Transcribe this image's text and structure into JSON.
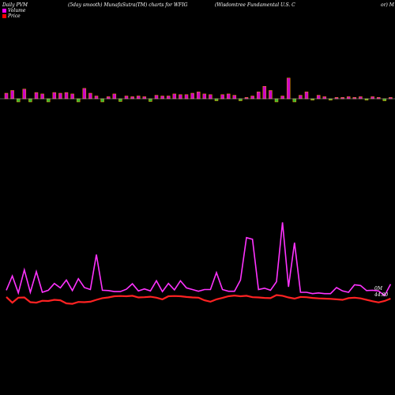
{
  "header": {
    "left": "Daily PVM",
    "middle": "(5day smooth) MunafaSutra(TM) charts for WFIG",
    "right": "(Wisdomtree  Fundamental U.S. C",
    "right_cut": "or) M"
  },
  "legend": {
    "volume_label": "Volume",
    "price_label": "Price",
    "volume_color": "#ff00ff",
    "price_color": "#ff0000"
  },
  "colors": {
    "background": "#000000",
    "volume_bar_up": "#cc00cc",
    "volume_bar_down": "#33bb33",
    "volume_bar_stroke": "#ffa500",
    "volume_line": "#ff33ff",
    "price_line": "#ff2222",
    "baseline": "#aaaaaa"
  },
  "chart_data": {
    "type": "bar",
    "title": "(5day smooth) MunafaSutra(TM) charts for WFIG",
    "grid": false,
    "series": [
      {
        "name": "Volume",
        "values": [
          8,
          12,
          7,
          14,
          6,
          9,
          7,
          5,
          9,
          8,
          9,
          7,
          5,
          15,
          8,
          4,
          8,
          3,
          7,
          4,
          4,
          3,
          4,
          3,
          4,
          5,
          4,
          4,
          7,
          6,
          6,
          8,
          10,
          7,
          6,
          3,
          6,
          7,
          5,
          3,
          2,
          4,
          10,
          18,
          12,
          6,
          4,
          30,
          24,
          5,
          10,
          2,
          5,
          3,
          2,
          2,
          2,
          3,
          2,
          3,
          2,
          3,
          2,
          3,
          2
        ],
        "direction": [
          "u",
          "u",
          "d",
          "u",
          "d",
          "u",
          "u",
          "d",
          "u",
          "u",
          "u",
          "u",
          "d",
          "u",
          "u",
          "u",
          "d",
          "u",
          "u",
          "d",
          "u",
          "u",
          "u",
          "u",
          "d",
          "u",
          "u",
          "u",
          "u",
          "u",
          "u",
          "u",
          "u",
          "u",
          "u",
          "d",
          "u",
          "u",
          "u",
          "d",
          "u",
          "u",
          "u",
          "u",
          "u",
          "d",
          "u",
          "u",
          "d",
          "u",
          "u",
          "d",
          "u",
          "u",
          "d",
          "u",
          "u",
          "u",
          "u",
          "u",
          "d",
          "u",
          "u",
          "d",
          "u"
        ]
      },
      {
        "name": "Volume (smooth)",
        "values": [
          20,
          62,
          12,
          80,
          14,
          75,
          14,
          20,
          40,
          27,
          50,
          19,
          54,
          28,
          22,
          125,
          20,
          19,
          16,
          16,
          23,
          39,
          18,
          24,
          18,
          48,
          16,
          40,
          21,
          48,
          27,
          22,
          17,
          22,
          22,
          72,
          22,
          17,
          17,
          50,
          175,
          170,
          22,
          26,
          20,
          45,
          220,
          30,
          160,
          14,
          14,
          10,
          12,
          10,
          10,
          28,
          18,
          14,
          36,
          34,
          19,
          20,
          18,
          4,
          38
        ],
        "label": "0M"
      },
      {
        "name": "Price",
        "values": [
          44.87,
          44.63,
          44.84,
          44.85,
          44.65,
          44.63,
          44.71,
          44.7,
          44.75,
          44.73,
          44.6,
          44.58,
          44.66,
          44.65,
          44.67,
          44.75,
          44.82,
          44.85,
          44.9,
          44.91,
          44.9,
          44.92,
          44.85,
          44.86,
          44.88,
          44.84,
          44.77,
          44.9,
          44.91,
          44.9,
          44.87,
          44.85,
          44.84,
          44.73,
          44.67,
          44.77,
          44.83,
          44.9,
          44.93,
          44.9,
          44.92,
          44.86,
          44.85,
          44.83,
          44.82,
          44.95,
          44.92,
          44.85,
          44.8,
          44.87,
          44.86,
          44.83,
          44.81,
          44.8,
          44.79,
          44.77,
          44.75,
          44.82,
          44.84,
          44.81,
          44.75,
          44.69,
          44.64,
          44.7,
          44.8
        ],
        "label": "44.80"
      }
    ]
  }
}
